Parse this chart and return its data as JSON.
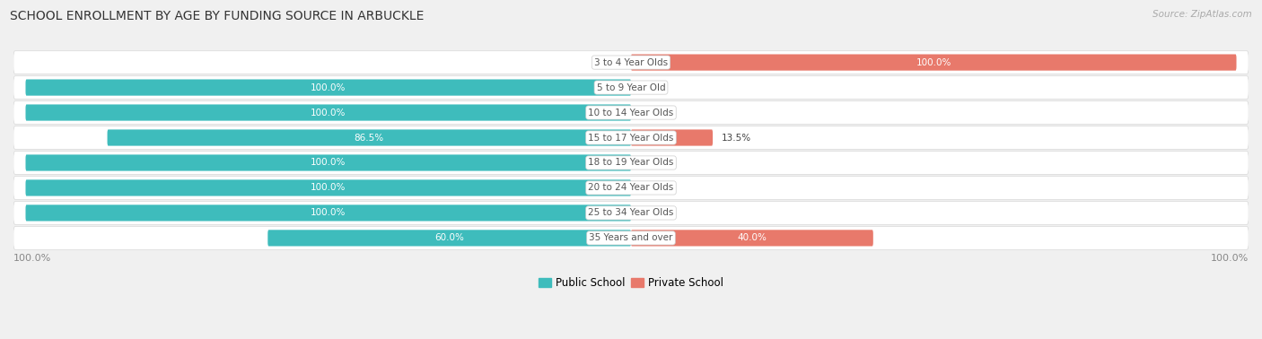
{
  "title": "SCHOOL ENROLLMENT BY AGE BY FUNDING SOURCE IN ARBUCKLE",
  "source": "Source: ZipAtlas.com",
  "categories": [
    "3 to 4 Year Olds",
    "5 to 9 Year Old",
    "10 to 14 Year Olds",
    "15 to 17 Year Olds",
    "18 to 19 Year Olds",
    "20 to 24 Year Olds",
    "25 to 34 Year Olds",
    "35 Years and over"
  ],
  "public_values": [
    0.0,
    100.0,
    100.0,
    86.5,
    100.0,
    100.0,
    100.0,
    60.0
  ],
  "private_values": [
    100.0,
    0.0,
    0.0,
    13.5,
    0.0,
    0.0,
    0.0,
    40.0
  ],
  "public_color": "#3ebcbc",
  "private_color": "#e8796b",
  "bg_color": "#f0f0f0",
  "row_bg_color": "#ffffff",
  "row_border_color": "#d8d8d8",
  "label_white": "#ffffff",
  "label_dark": "#444444",
  "cat_label_color": "#555555",
  "axis_label_color": "#888888",
  "axis_label_left": "100.0%",
  "axis_label_right": "100.0%",
  "legend_public": "Public School",
  "legend_private": "Private School",
  "title_fontsize": 10,
  "source_fontsize": 7.5,
  "bar_label_fontsize": 7.5,
  "category_fontsize": 7.5,
  "axis_fontsize": 8
}
